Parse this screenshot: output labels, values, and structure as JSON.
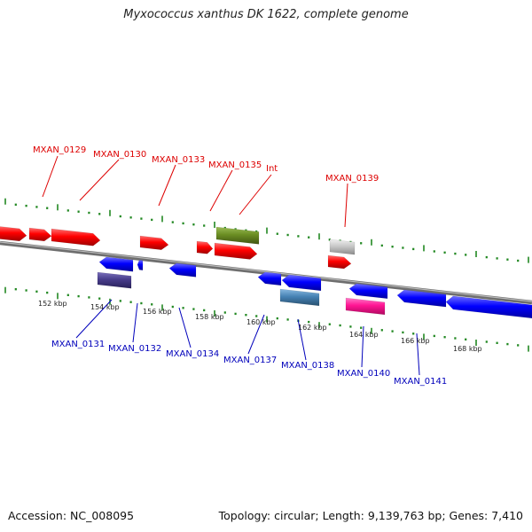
{
  "header": {
    "title": "Myxococcus xanthus DK 1622, complete genome"
  },
  "footer": {
    "accession": "Accession: NC_008095",
    "summary": "Topology: circular; Length: 9,139,763 bp; Genes: 7,410"
  },
  "colors": {
    "top_label": "#dd0000",
    "bottom_label": "#0000bb",
    "tick": "#228822",
    "backbone": "#888888",
    "cds_forward": "#ff0000",
    "cds_reverse": "#0000ff",
    "olive": "#6b8e23",
    "gray_feature": "#c0c0c0",
    "purple_feature": "#483d8b",
    "steel_feature": "#4682b4",
    "pink_feature": "#ff1493"
  },
  "scale": {
    "unit": "kbp",
    "labels": [
      "152 kbp",
      "154 kbp",
      "156 kbp",
      "158 kbp",
      "160 kbp",
      "162 kbp",
      "164 kbp",
      "166 kbp",
      "168 kbp"
    ]
  },
  "top_labels": [
    "MXAN_0129",
    "MXAN_0130",
    "MXAN_0133",
    "MXAN_0135",
    "Int",
    "MXAN_0139"
  ],
  "bottom_labels": [
    "MXAN_0131",
    "MXAN_0132",
    "MXAN_0134",
    "MXAN_0137",
    "MXAN_0138",
    "MXAN_0140",
    "MXAN_0141"
  ]
}
